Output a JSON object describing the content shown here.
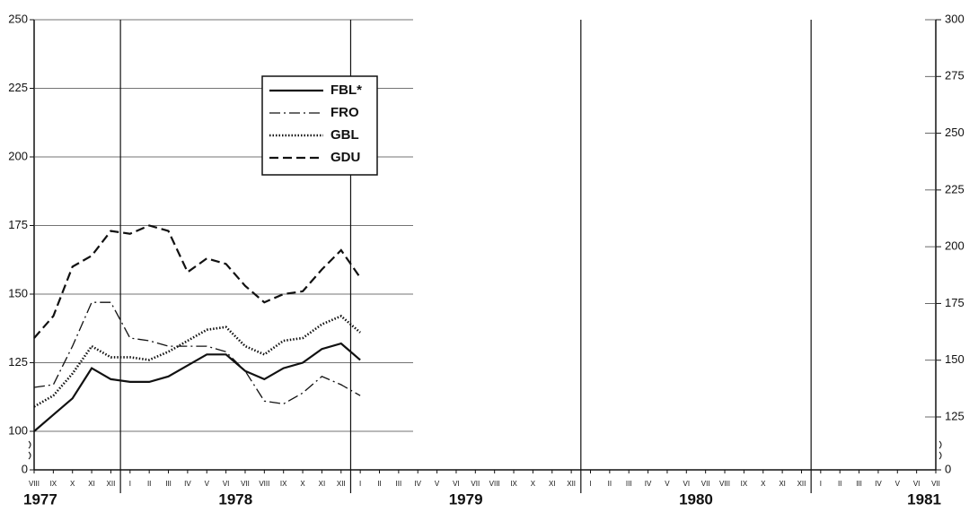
{
  "chart_data": {
    "type": "line",
    "categories": [
      "VIII",
      "IX",
      "X",
      "XI",
      "XII",
      "I",
      "II",
      "III",
      "IV",
      "V",
      "VI",
      "VII",
      "VIII",
      "IX",
      "X",
      "XI",
      "XII",
      "I",
      "II",
      "III",
      "IV",
      "V",
      "VI",
      "VII",
      "VIII",
      "IX",
      "X",
      "XI",
      "XII",
      "I",
      "II",
      "III",
      "IV",
      "V",
      "VI",
      "VII",
      "VIII",
      "IX",
      "X",
      "XI",
      "XII",
      "I",
      "II",
      "III",
      "IV",
      "V",
      "VI",
      "VII"
    ],
    "x_years": [
      "1977",
      "1978",
      "1979",
      "1980",
      "1981"
    ],
    "series": [
      {
        "name": "FBL*",
        "color": "#111111",
        "line_style": "solid",
        "values": [
          100,
          106,
          112,
          123,
          119,
          118,
          118,
          120,
          124,
          128,
          128,
          122,
          119,
          123,
          125,
          130,
          132,
          126,
          null,
          null,
          null,
          null,
          null,
          null,
          null,
          null,
          null,
          null,
          null,
          null,
          null,
          null,
          null,
          null,
          null,
          null,
          null,
          null,
          null,
          null,
          null,
          null,
          null,
          null,
          null,
          null,
          null,
          null
        ]
      },
      {
        "name": "FRO",
        "color": "#111111",
        "line_style": "dashdot",
        "values": [
          116,
          117,
          131,
          147,
          147,
          134,
          133,
          131,
          131,
          131,
          129,
          122,
          111,
          110,
          114,
          120,
          117,
          113,
          null,
          null,
          null,
          null,
          null,
          null,
          null,
          null,
          null,
          null,
          null,
          null,
          null,
          null,
          null,
          null,
          null,
          null,
          null,
          null,
          null,
          null,
          null,
          null,
          null,
          null,
          null,
          null,
          null,
          null
        ]
      },
      {
        "name": "GBL",
        "color": "#111111",
        "line_style": "dotted",
        "values": [
          109,
          113,
          121,
          131,
          127,
          127,
          126,
          129,
          133,
          137,
          138,
          131,
          128,
          133,
          134,
          139,
          142,
          136,
          null,
          null,
          null,
          null,
          null,
          null,
          null,
          null,
          null,
          null,
          null,
          null,
          null,
          null,
          null,
          null,
          null,
          null,
          null,
          null,
          null,
          null,
          null,
          null,
          null,
          null,
          null,
          null,
          null,
          null
        ]
      },
      {
        "name": "GDU",
        "color": "#111111",
        "line_style": "dashed",
        "values": [
          134,
          142,
          160,
          164,
          173,
          172,
          175,
          173,
          158,
          163,
          161,
          153,
          147,
          150,
          151,
          159,
          166,
          156,
          null,
          null,
          null,
          null,
          null,
          null,
          null,
          null,
          null,
          null,
          null,
          null,
          null,
          null,
          null,
          null,
          null,
          null,
          null,
          null,
          null,
          null,
          null,
          null,
          null,
          null,
          null,
          null,
          null,
          null
        ]
      }
    ],
    "ylim": [
      100,
      250
    ],
    "yticks": [
      0,
      100,
      125,
      150,
      175,
      200,
      225,
      250
    ],
    "y2lim": [
      125,
      300
    ],
    "y2ticks": [
      0,
      125,
      150,
      175,
      200,
      225,
      250,
      275,
      300
    ],
    "axis_break": true,
    "grid": true,
    "legend": "upper left"
  }
}
